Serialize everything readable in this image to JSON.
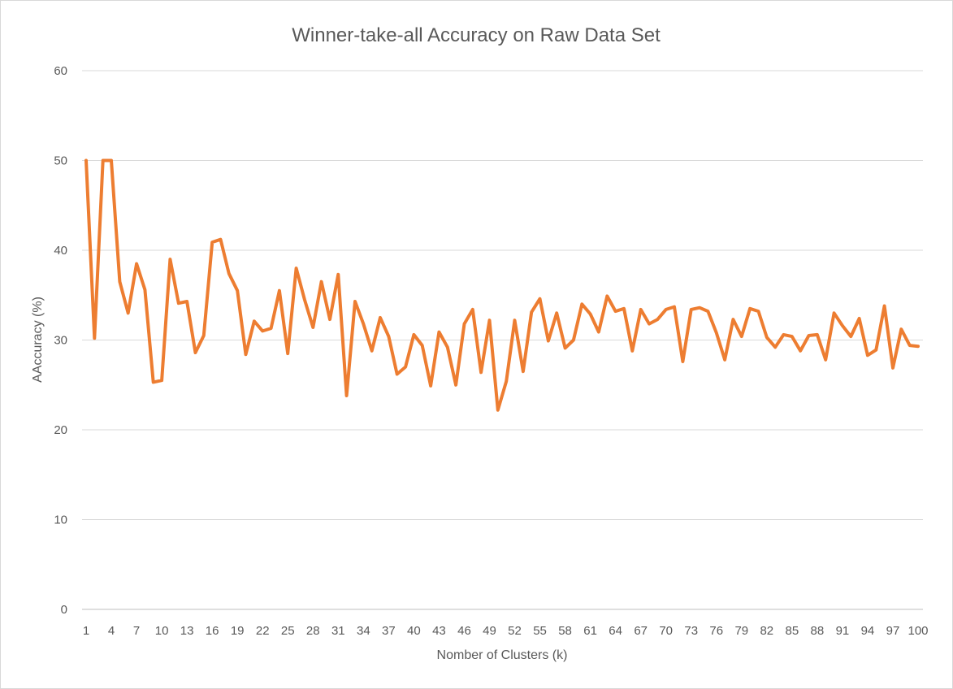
{
  "chart_data": {
    "type": "line",
    "title": "Winner-take-all Accuracy on Raw Data Set",
    "xlabel": "Nomber of Clusters (k)",
    "ylabel": "AAccuracy (%)",
    "ylim": [
      0,
      60
    ],
    "yticks": [
      0,
      10,
      20,
      30,
      40,
      50,
      60
    ],
    "xtick_labels": [
      "1",
      "4",
      "7",
      "10",
      "13",
      "16",
      "19",
      "22",
      "25",
      "28",
      "31",
      "34",
      "37",
      "40",
      "43",
      "46",
      "49",
      "52",
      "55",
      "58",
      "61",
      "64",
      "67",
      "70",
      "73",
      "76",
      "79",
      "82",
      "85",
      "88",
      "91",
      "94",
      "97",
      "100"
    ],
    "grid": true,
    "legend": "none",
    "line_color": "#ed7d31",
    "series": [
      {
        "x": [
          1,
          2,
          3,
          4,
          5,
          6,
          7,
          8,
          9,
          10,
          11,
          12,
          13,
          14,
          15,
          16,
          17,
          18,
          19,
          20,
          21,
          22,
          23,
          24,
          25,
          26,
          27,
          28,
          29,
          30,
          31,
          32,
          33,
          34,
          35,
          36,
          37,
          38,
          39,
          40,
          41,
          42,
          43,
          44,
          45,
          46,
          47,
          48,
          49,
          50,
          51,
          52,
          53,
          54,
          55,
          56,
          57,
          58,
          59,
          60,
          61,
          62,
          63,
          64,
          65,
          66,
          67,
          68,
          69,
          70,
          71,
          72,
          73,
          74,
          75,
          76,
          77,
          78,
          79,
          80,
          81,
          82,
          83,
          84,
          85,
          86,
          87,
          88,
          89,
          90,
          91,
          92,
          93,
          94,
          95,
          96,
          97,
          98,
          99,
          100
        ],
        "values": [
          50.0,
          30.2,
          50.0,
          50.0,
          36.5,
          33.0,
          38.5,
          35.6,
          25.3,
          25.5,
          39.0,
          34.1,
          34.3,
          28.6,
          30.5,
          40.9,
          41.2,
          37.4,
          35.5,
          28.4,
          32.1,
          31.0,
          31.3,
          35.5,
          28.5,
          38.0,
          34.5,
          31.4,
          36.5,
          32.3,
          37.3,
          23.8,
          34.3,
          31.8,
          28.8,
          32.5,
          30.4,
          26.2,
          27.0,
          30.6,
          29.4,
          24.9,
          30.9,
          29.2,
          25.0,
          31.8,
          33.4,
          26.4,
          32.2,
          22.2,
          25.4,
          32.2,
          26.5,
          33.1,
          34.6,
          29.9,
          33.0,
          29.1,
          30.0,
          34.0,
          32.9,
          30.9,
          34.9,
          33.2,
          33.5,
          28.8,
          33.4,
          31.8,
          32.3,
          33.4,
          33.7,
          27.6,
          33.4,
          33.6,
          33.2,
          30.8,
          27.8,
          32.3,
          30.4,
          33.5,
          33.2,
          30.3,
          29.2,
          30.6,
          30.4,
          28.8,
          30.5,
          30.6,
          27.8,
          33.0,
          31.6,
          30.4,
          32.4,
          28.3,
          28.9,
          33.8,
          26.9,
          31.2,
          29.4,
          29.3
        ]
      }
    ]
  }
}
